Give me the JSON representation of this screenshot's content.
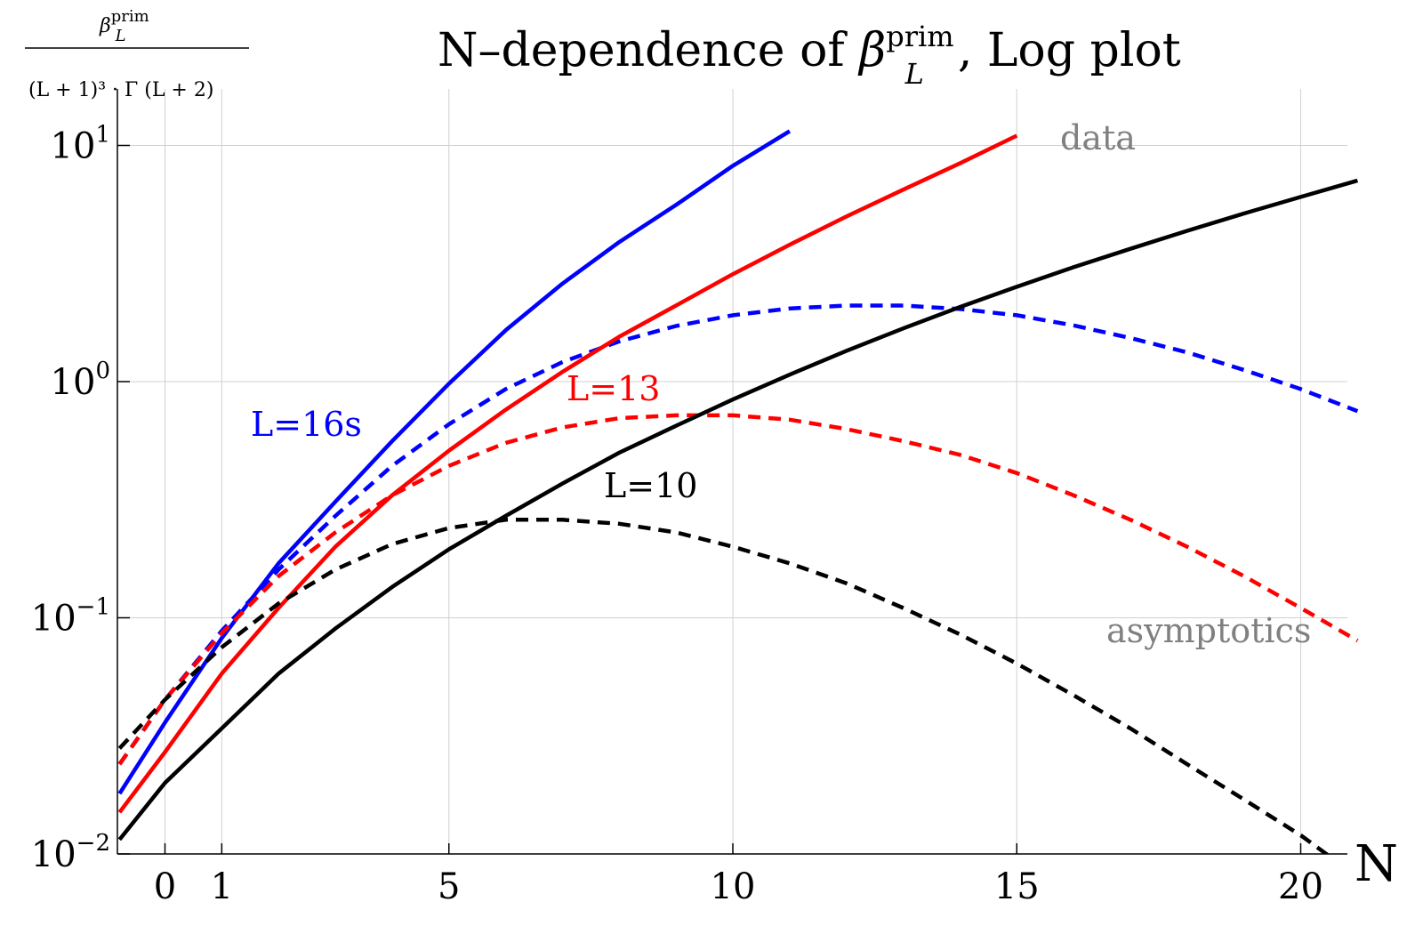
{
  "chart_data": {
    "type": "line",
    "title_main": "N–dependence of ",
    "title_beta": "β",
    "title_sup": "prim",
    "title_sub": "L",
    "title_tail": ", Log plot",
    "ylabel_num": "β",
    "ylabel_num_sup": "prim",
    "ylabel_num_sub": "L",
    "ylabel_den": "(L + 1)³ · Γ (L + 2)",
    "xlabel": "N",
    "yscale": "log",
    "xlim": [
      -1.7,
      20.5
    ],
    "ylim_log10": [
      -2.0,
      1.15
    ],
    "x_ticks": [
      0,
      1,
      5,
      10,
      15,
      20
    ],
    "x_tick_labels": [
      "0",
      "1",
      "5",
      "10",
      "15",
      "20"
    ],
    "y_ticks_log10": [
      -2,
      -1,
      0,
      1
    ],
    "y_tick_labels": [
      {
        "base": "10",
        "exp": "−2"
      },
      {
        "base": "10",
        "exp": "−1"
      },
      {
        "base": "10",
        "exp": "0"
      },
      {
        "base": "10",
        "exp": "1"
      }
    ],
    "grid": true,
    "annotations": {
      "data": "data",
      "asymptotics": "asymptotics",
      "L16": "L=16s",
      "L13": "L=13",
      "L10": "L=10"
    },
    "colors": {
      "L16": "#0000ff",
      "L13": "#ff0000",
      "L10": "#000000",
      "annotation_gray": "#808080",
      "grid": "#d0d0d0"
    },
    "series": [
      {
        "name": "L=16s",
        "kind": "data",
        "color": "#0000ff",
        "style": "solid",
        "x": [
          -0.8,
          0,
          1,
          2,
          3,
          4,
          5,
          6,
          7,
          8,
          9,
          10,
          11
        ],
        "y": [
          0.018,
          0.036,
          0.082,
          0.17,
          0.31,
          0.56,
          0.98,
          1.65,
          2.6,
          3.9,
          5.6,
          8.2,
          11.5
        ]
      },
      {
        "name": "L=16s",
        "kind": "asymptotics",
        "color": "#0000ff",
        "style": "dashed",
        "x": [
          -0.8,
          0,
          1,
          2,
          3,
          4,
          5,
          6,
          7,
          8,
          9,
          10,
          11,
          12,
          13,
          14,
          15,
          16,
          17,
          18,
          19,
          20,
          21
        ],
        "y": [
          0.024,
          0.045,
          0.088,
          0.16,
          0.27,
          0.44,
          0.66,
          0.93,
          1.21,
          1.48,
          1.72,
          1.91,
          2.04,
          2.1,
          2.1,
          2.03,
          1.91,
          1.73,
          1.53,
          1.33,
          1.12,
          0.93,
          0.75
        ]
      },
      {
        "name": "L=13",
        "kind": "data",
        "color": "#ff0000",
        "style": "solid",
        "x": [
          -0.8,
          0,
          1,
          2,
          3,
          4,
          5,
          6,
          7,
          8,
          9,
          10,
          11,
          12,
          13,
          14,
          15
        ],
        "y": [
          0.015,
          0.027,
          0.058,
          0.11,
          0.2,
          0.33,
          0.51,
          0.76,
          1.1,
          1.55,
          2.1,
          2.85,
          3.8,
          5.0,
          6.5,
          8.4,
          11.0
        ]
      },
      {
        "name": "L=13",
        "kind": "asymptotics",
        "color": "#ff0000",
        "style": "dashed",
        "x": [
          -0.8,
          0,
          1,
          2,
          3,
          4,
          5,
          6,
          7,
          8,
          9,
          10,
          11,
          12,
          13,
          14,
          15,
          16,
          17,
          18,
          19,
          20,
          21
        ],
        "y": [
          0.024,
          0.045,
          0.086,
          0.15,
          0.23,
          0.33,
          0.44,
          0.55,
          0.64,
          0.7,
          0.72,
          0.72,
          0.69,
          0.63,
          0.56,
          0.49,
          0.41,
          0.33,
          0.26,
          0.2,
          0.15,
          0.11,
          0.08
        ]
      },
      {
        "name": "L=10",
        "kind": "data",
        "color": "#000000",
        "style": "solid",
        "x": [
          -0.8,
          0,
          1,
          2,
          3,
          4,
          5,
          6,
          7,
          8,
          9,
          10,
          11,
          12,
          13,
          14,
          15,
          16,
          17,
          18,
          19,
          20,
          21
        ],
        "y": [
          0.0115,
          0.02,
          0.034,
          0.058,
          0.09,
          0.135,
          0.195,
          0.27,
          0.37,
          0.5,
          0.65,
          0.84,
          1.07,
          1.35,
          1.68,
          2.07,
          2.52,
          3.05,
          3.65,
          4.35,
          5.15,
          6.05,
          7.1
        ]
      },
      {
        "name": "L=10",
        "kind": "asymptotics",
        "color": "#000000",
        "style": "dashed",
        "x": [
          -0.8,
          0,
          1,
          2,
          3,
          4,
          5,
          6,
          7,
          8,
          9,
          10,
          11,
          12,
          13,
          14,
          15,
          16,
          17,
          18,
          19,
          20,
          20.5
        ],
        "y": [
          0.028,
          0.045,
          0.075,
          0.115,
          0.16,
          0.205,
          0.24,
          0.26,
          0.26,
          0.25,
          0.23,
          0.2,
          0.17,
          0.14,
          0.11,
          0.085,
          0.064,
          0.047,
          0.034,
          0.024,
          0.017,
          0.012,
          0.0098
        ]
      }
    ]
  }
}
